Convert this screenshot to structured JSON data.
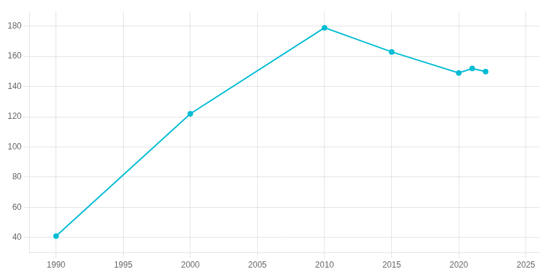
{
  "chart_data": {
    "type": "line",
    "x": [
      1990,
      2000,
      2010,
      2015,
      2020,
      2021,
      2022
    ],
    "values": [
      41,
      122,
      179,
      163,
      149,
      152,
      150
    ],
    "color": "#00bcd4",
    "marker": "circle",
    "xlim": [
      1988,
      2026
    ],
    "xticks": [
      1990,
      1995,
      2000,
      2005,
      2010,
      2015,
      2020,
      2025
    ],
    "ylim": [
      30,
      190
    ],
    "yticks": [
      40,
      60,
      80,
      100,
      120,
      140,
      160,
      180
    ],
    "grid": true
  }
}
